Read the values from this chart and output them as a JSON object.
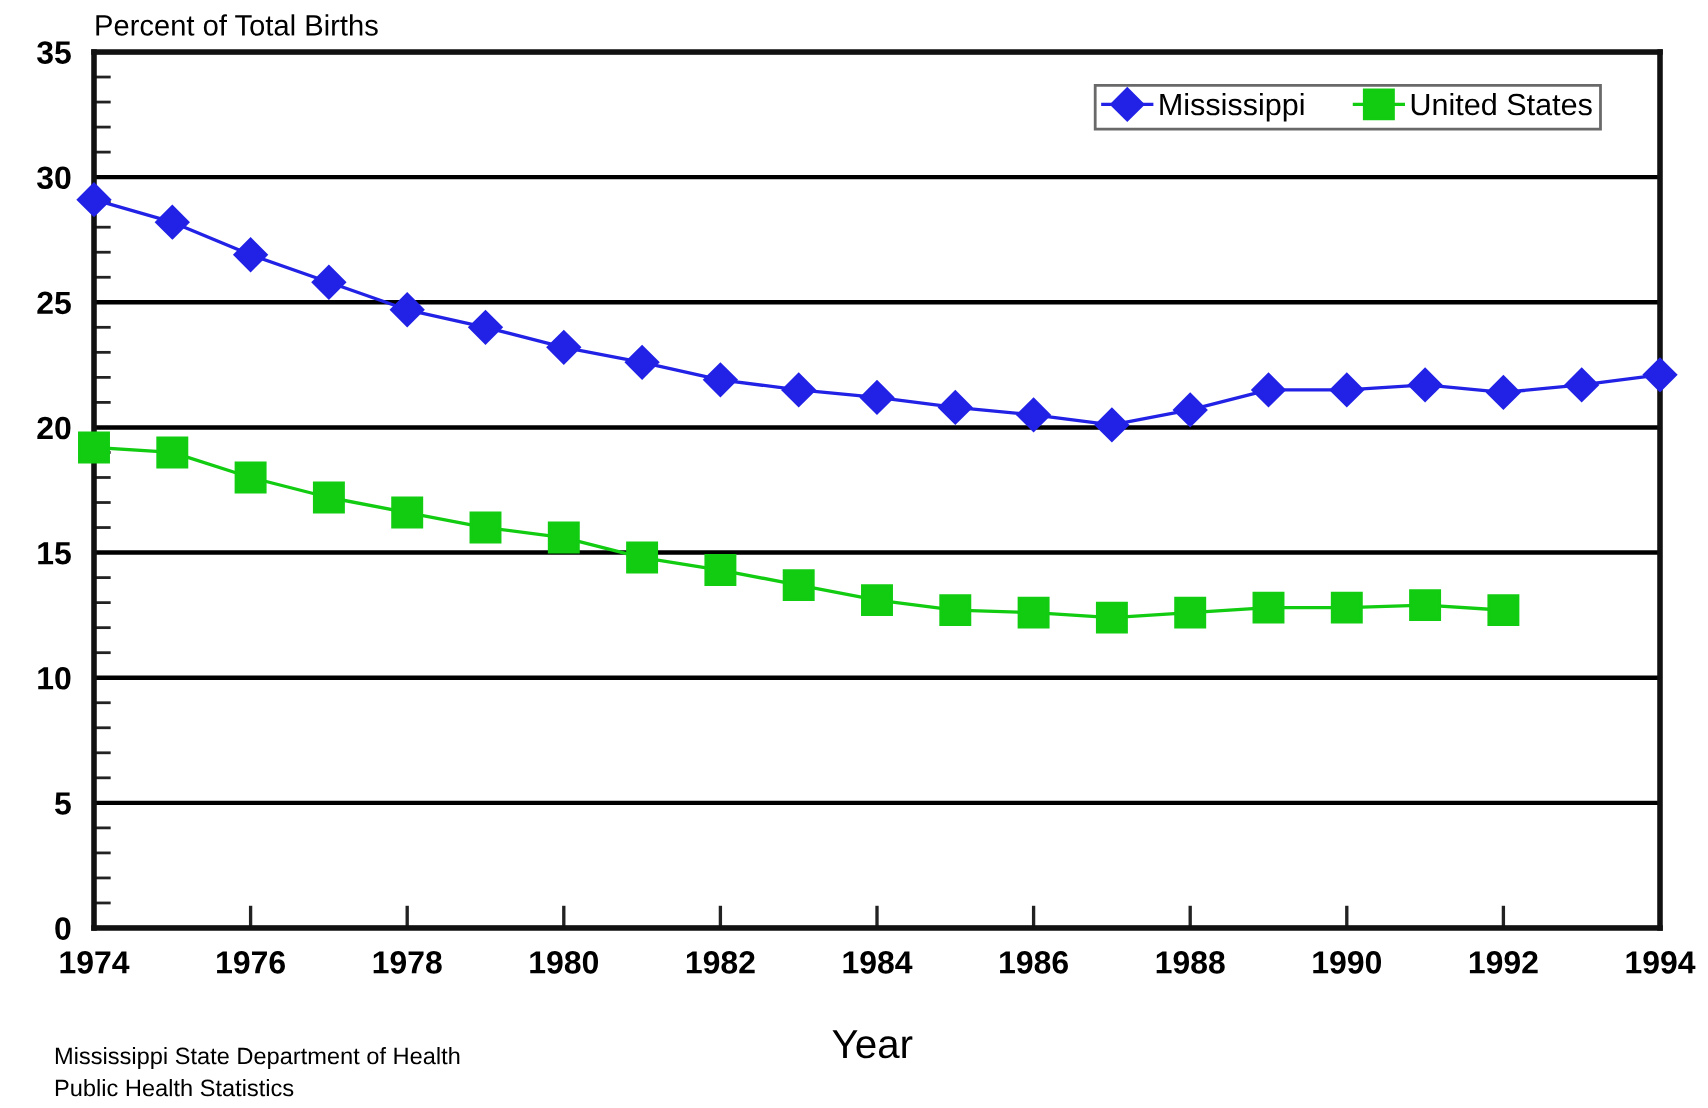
{
  "chart_data": {
    "type": "line",
    "ylabel": "Percent of Total Births",
    "xlabel": "Year",
    "annotations": [
      "Mississippi State Department of Health",
      "Public Health Statistics"
    ],
    "x": [
      1974,
      1975,
      1976,
      1977,
      1978,
      1979,
      1980,
      1981,
      1982,
      1983,
      1984,
      1985,
      1986,
      1987,
      1988,
      1989,
      1990,
      1991,
      1992,
      1993,
      1994
    ],
    "series": [
      {
        "name": "Mississippi",
        "color": "#2222e6",
        "marker": "diamond",
        "values": [
          29.1,
          28.2,
          26.9,
          25.8,
          24.7,
          24.0,
          23.2,
          22.6,
          21.9,
          21.5,
          21.2,
          20.8,
          20.5,
          20.1,
          20.7,
          21.5,
          21.5,
          21.7,
          21.4,
          21.7,
          22.1
        ]
      },
      {
        "name": "United States",
        "color": "#11cc11",
        "marker": "square",
        "values": [
          19.2,
          19.0,
          18.0,
          17.2,
          16.6,
          16.0,
          15.6,
          14.8,
          14.3,
          13.7,
          13.1,
          12.7,
          12.6,
          12.4,
          12.6,
          12.8,
          12.8,
          12.9,
          12.7,
          null,
          null
        ]
      }
    ],
    "xlim": [
      1974,
      1994
    ],
    "xticks": [
      1974,
      1976,
      1978,
      1980,
      1982,
      1984,
      1986,
      1988,
      1990,
      1992,
      1994
    ],
    "ylim": [
      0,
      35
    ],
    "yticks": [
      0,
      {
        "value": 1,
        "label": null
      },
      {
        "value": 2,
        "label": null
      },
      {
        "value": 3,
        "label": null
      },
      {
        "value": 4,
        "label": null
      },
      5,
      {
        "value": 6,
        "label": null
      },
      {
        "value": 7,
        "label": null
      },
      {
        "value": 8,
        "label": null
      },
      {
        "value": 9,
        "label": null
      },
      10,
      {
        "value": 11,
        "label": null
      },
      {
        "value": 12,
        "label": null
      },
      {
        "value": 13,
        "label": null
      },
      {
        "value": 14,
        "label": null
      },
      15,
      {
        "value": 16,
        "label": null
      },
      {
        "value": 17,
        "label": null
      },
      {
        "value": 18,
        "label": null
      },
      {
        "value": 19,
        "label": null
      },
      20,
      {
        "value": 21,
        "label": null
      },
      {
        "value": 22,
        "label": null
      },
      {
        "value": 23,
        "label": null
      },
      {
        "value": 24,
        "label": null
      },
      25,
      {
        "value": 26,
        "label": null
      },
      {
        "value": 27,
        "label": null
      },
      {
        "value": 28,
        "label": null
      },
      {
        "value": 29,
        "label": null
      },
      30,
      {
        "value": 31,
        "label": null
      },
      {
        "value": 32,
        "label": null
      },
      {
        "value": 33,
        "label": null
      },
      {
        "value": 34,
        "label": null
      },
      35
    ],
    "grid": "y",
    "legend": "top right",
    "line_style": "solid"
  }
}
